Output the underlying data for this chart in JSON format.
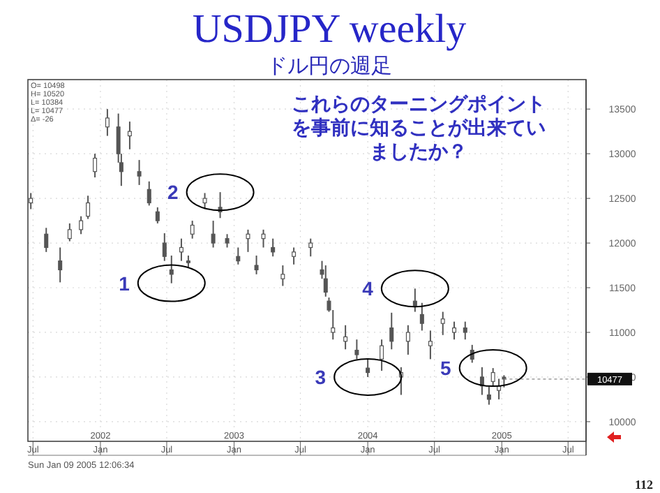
{
  "chart_data": {
    "type": "candlestick",
    "title": "USDJPY weekly",
    "subtitle": "ドル円の週足",
    "x": [
      "2001-06-25",
      "2001-08-06",
      "2001-09-13",
      "2001-10-09",
      "2001-11-09",
      "2001-11-28",
      "2001-12-17",
      "2002-01-20",
      "2002-02-19",
      "2002-02-27",
      "2002-03-22",
      "2002-04-17",
      "2002-05-14",
      "2002-06-06",
      "2002-06-25",
      "2002-07-14",
      "2002-08-10",
      "2002-08-29",
      "2002-09-09",
      "2002-10-13",
      "2002-11-05",
      "2002-11-24",
      "2002-12-13",
      "2003-01-12",
      "2003-02-08",
      "2003-03-03",
      "2003-03-22",
      "2003-04-17",
      "2003-05-14",
      "2003-06-13",
      "2003-07-29",
      "2003-08-29",
      "2003-09-08",
      "2003-09-17",
      "2003-09-28",
      "2003-11-01",
      "2003-12-02",
      "2004-01-01",
      "2004-02-08",
      "2004-03-06",
      "2004-04-01",
      "2004-04-20",
      "2004-05-09",
      "2004-05-28",
      "2004-06-20",
      "2004-07-24",
      "2004-08-24",
      "2004-09-23",
      "2004-10-12",
      "2004-11-08",
      "2004-11-27",
      "2004-12-08",
      "2004-12-24",
      "2005-01-07"
    ],
    "ohlc": [
      [
        12450,
        12560,
        12380,
        12500
      ],
      [
        12100,
        12170,
        11900,
        11950
      ],
      [
        11800,
        11950,
        11560,
        11700
      ],
      [
        12050,
        12220,
        12020,
        12150
      ],
      [
        12150,
        12300,
        12100,
        12250
      ],
      [
        12300,
        12530,
        12270,
        12450
      ],
      [
        12800,
        13000,
        12735,
        12950
      ],
      [
        13300,
        13500,
        13200,
        13400
      ],
      [
        13300,
        13450,
        12900,
        13000
      ],
      [
        12900,
        13000,
        12640,
        12800
      ],
      [
        13200,
        13360,
        13050,
        13250
      ],
      [
        12800,
        12930,
        12650,
        12750
      ],
      [
        12600,
        12690,
        12420,
        12450
      ],
      [
        12350,
        12400,
        12220,
        12250
      ],
      [
        12000,
        12110,
        11800,
        11850
      ],
      [
        11700,
        11860,
        11550,
        11650
      ],
      [
        11900,
        12050,
        11800,
        11950
      ],
      [
        11800,
        11860,
        11720,
        11780
      ],
      [
        12100,
        12250,
        12050,
        12200
      ],
      [
        12450,
        12560,
        12380,
        12500
      ],
      [
        12100,
        12250,
        11950,
        12000
      ],
      [
        12400,
        12570,
        12280,
        12350
      ],
      [
        12050,
        12100,
        11950,
        12000
      ],
      [
        11850,
        11950,
        11760,
        11800
      ],
      [
        12050,
        12150,
        11900,
        12100
      ],
      [
        11750,
        11860,
        11650,
        11700
      ],
      [
        12050,
        12150,
        11950,
        12100
      ],
      [
        11950,
        12050,
        11850,
        11900
      ],
      [
        11600,
        11750,
        11520,
        11650
      ],
      [
        11850,
        11950,
        11760,
        11900
      ],
      [
        11950,
        12050,
        11850,
        12000
      ],
      [
        11700,
        11800,
        11600,
        11650
      ],
      [
        11600,
        11750,
        11400,
        11450
      ],
      [
        11350,
        11390,
        11230,
        11250
      ],
      [
        11000,
        11250,
        10920,
        11050
      ],
      [
        10900,
        11080,
        10810,
        10950
      ],
      [
        10800,
        10920,
        10700,
        10750
      ],
      [
        10600,
        10700,
        10500,
        10550
      ],
      [
        10700,
        10920,
        10570,
        10850
      ],
      [
        11050,
        11220,
        10810,
        10900
      ],
      [
        10500,
        10610,
        10300,
        10550
      ],
      [
        10900,
        11080,
        10750,
        11000
      ],
      [
        11350,
        11490,
        11230,
        11300
      ],
      [
        11200,
        11330,
        11020,
        11100
      ],
      [
        10850,
        11020,
        10700,
        10900
      ],
      [
        11100,
        11230,
        10970,
        11150
      ],
      [
        11000,
        11120,
        10920,
        11050
      ],
      [
        11050,
        11120,
        10920,
        11000
      ],
      [
        10800,
        10860,
        10660,
        10700
      ],
      [
        10500,
        10610,
        10300,
        10400
      ],
      [
        10300,
        10390,
        10190,
        10250
      ],
      [
        10450,
        10600,
        10400,
        10550
      ],
      [
        10350,
        10480,
        10250,
        10400
      ],
      [
        10498,
        10520,
        10384,
        10477
      ]
    ],
    "xlim": [
      "2001-06-17",
      "2005-08-19"
    ],
    "xticks": [
      {
        "value": "2001-07-01",
        "label": "Jul"
      },
      {
        "value": "2002-01-01",
        "label": "Jan"
      },
      {
        "value": "2002-07-01",
        "label": "Jul"
      },
      {
        "value": "2003-01-01",
        "label": "Jan"
      },
      {
        "value": "2003-07-01",
        "label": "Jul"
      },
      {
        "value": "2004-01-01",
        "label": "Jan"
      },
      {
        "value": "2004-07-01",
        "label": "Jul"
      },
      {
        "value": "2005-01-01",
        "label": "Jan"
      },
      {
        "value": "2005-07-01",
        "label": "Jul"
      }
    ],
    "x2lim": [
      "2001-06-17",
      "2005-08-19"
    ],
    "x2ticks": [
      {
        "value": "2002-01-01",
        "label": "2002"
      },
      {
        "value": "2003-01-01",
        "label": "2003"
      },
      {
        "value": "2004-01-01",
        "label": "2004"
      },
      {
        "value": "2005-01-01",
        "label": "2005"
      }
    ],
    "ylim": [
      9780,
      13830
    ],
    "yticks": [
      10000,
      10500,
      11000,
      11500,
      12000,
      12500,
      13000,
      13500
    ],
    "grid": true,
    "ref_lines": [
      {
        "axis": "y",
        "value": 10477,
        "label": "10477"
      }
    ],
    "annotations": [
      "O=   10498\nH=   10520\nL=   10384\nL=   10477\nΔ=      -26",
      "これらのターニングポイントを事前に知ることが出来ていましたか？",
      "Sun Jan 09 2005 12:06:34",
      "112",
      {
        "text": "1",
        "x": "2002-07-14",
        "y": 11550
      },
      {
        "text": "2",
        "x": "2002-11-24",
        "y": 12570
      },
      {
        "text": "3",
        "x": "2004-01-01",
        "y": 10500
      },
      {
        "text": "4",
        "x": "2004-05-09",
        "y": 11490
      },
      {
        "text": "5",
        "x": "2004-12-08",
        "y": 10600
      }
    ]
  }
}
